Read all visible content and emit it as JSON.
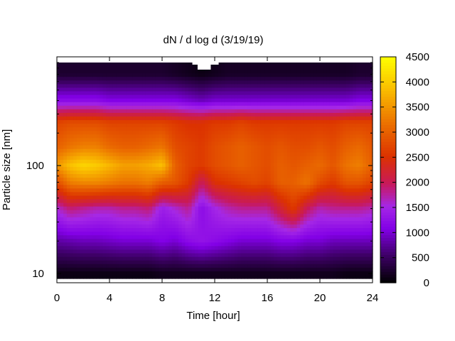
{
  "chart_data": {
    "type": "heatmap",
    "title": "dN / d log d (3/19/19)",
    "xlabel": "Time [hour]",
    "ylabel": "Particle size [nm]",
    "xlim": [
      0,
      24
    ],
    "ylim": [
      9,
      900
    ],
    "yscale": "log",
    "x_ticks": [
      "0",
      "4",
      "8",
      "12",
      "16",
      "20",
      "24"
    ],
    "y_ticks": [
      "10",
      "100"
    ],
    "colorbar": {
      "range": [
        0,
        4500
      ],
      "ticks": [
        "0",
        "500",
        "1000",
        "1500",
        "2000",
        "2500",
        "3000",
        "3500",
        "4000",
        "4500"
      ],
      "colormap": "black-purple-red-orange-yellow"
    },
    "x": [
      0,
      1,
      2,
      3,
      4,
      5,
      6,
      7,
      8,
      9,
      10,
      11,
      12,
      13,
      14,
      15,
      16,
      17,
      18,
      19,
      20,
      21,
      22,
      23,
      24
    ],
    "y": [
      10,
      20,
      40,
      70,
      100,
      150,
      250,
      400,
      700
    ],
    "z": [
      [
        100,
        100,
        100,
        100,
        100,
        100,
        100,
        100,
        150,
        150,
        150,
        150,
        150,
        150,
        150,
        150,
        150,
        150,
        150,
        150,
        150,
        150,
        100,
        100,
        100
      ],
      [
        800,
        850,
        900,
        900,
        950,
        1000,
        1000,
        1000,
        1100,
        1000,
        1200,
        1300,
        1200,
        1100,
        1000,
        1000,
        1000,
        1100,
        1100,
        1000,
        1000,
        900,
        900,
        900,
        900
      ],
      [
        1600,
        1900,
        1800,
        1700,
        1700,
        1800,
        1800,
        1900,
        1400,
        1600,
        1800,
        1200,
        1500,
        1700,
        1800,
        1800,
        1800,
        2200,
        2600,
        2000,
        1700,
        1800,
        1800,
        1800,
        1700
      ],
      [
        2800,
        3300,
        3400,
        3400,
        3300,
        3200,
        3200,
        3300,
        3000,
        2900,
        2600,
        2000,
        2500,
        2600,
        2700,
        2800,
        2700,
        3000,
        3000,
        3200,
        2800,
        2600,
        2900,
        2900,
        2700
      ],
      [
        3500,
        3900,
        4100,
        4000,
        3800,
        3600,
        3600,
        3700,
        3900,
        3000,
        2700,
        2600,
        2800,
        2900,
        3000,
        2900,
        2800,
        3000,
        2900,
        3000,
        3100,
        2900,
        3200,
        3300,
        3000
      ],
      [
        3000,
        3200,
        3300,
        3300,
        3100,
        3000,
        3000,
        3100,
        3200,
        2800,
        2700,
        2600,
        2800,
        2900,
        3000,
        2900,
        2800,
        2900,
        2800,
        2800,
        2900,
        2800,
        3000,
        3100,
        2900
      ],
      [
        2700,
        2800,
        2800,
        2800,
        2700,
        2700,
        2700,
        2700,
        2700,
        2600,
        2500,
        2500,
        2600,
        2600,
        2700,
        2600,
        2600,
        2600,
        2600,
        2600,
        2600,
        2600,
        2700,
        2700,
        2700
      ],
      [
        1200,
        1200,
        1200,
        1200,
        1100,
        1100,
        1100,
        1100,
        1100,
        1100,
        1000,
        900,
        1000,
        1000,
        1000,
        1000,
        1000,
        1000,
        1000,
        1000,
        1000,
        1000,
        1000,
        1100,
        1100
      ],
      [
        250,
        250,
        250,
        250,
        250,
        250,
        250,
        250,
        250,
        200,
        150,
        100,
        150,
        200,
        200,
        200,
        200,
        200,
        200,
        200,
        200,
        200,
        200,
        250,
        250
      ]
    ]
  }
}
